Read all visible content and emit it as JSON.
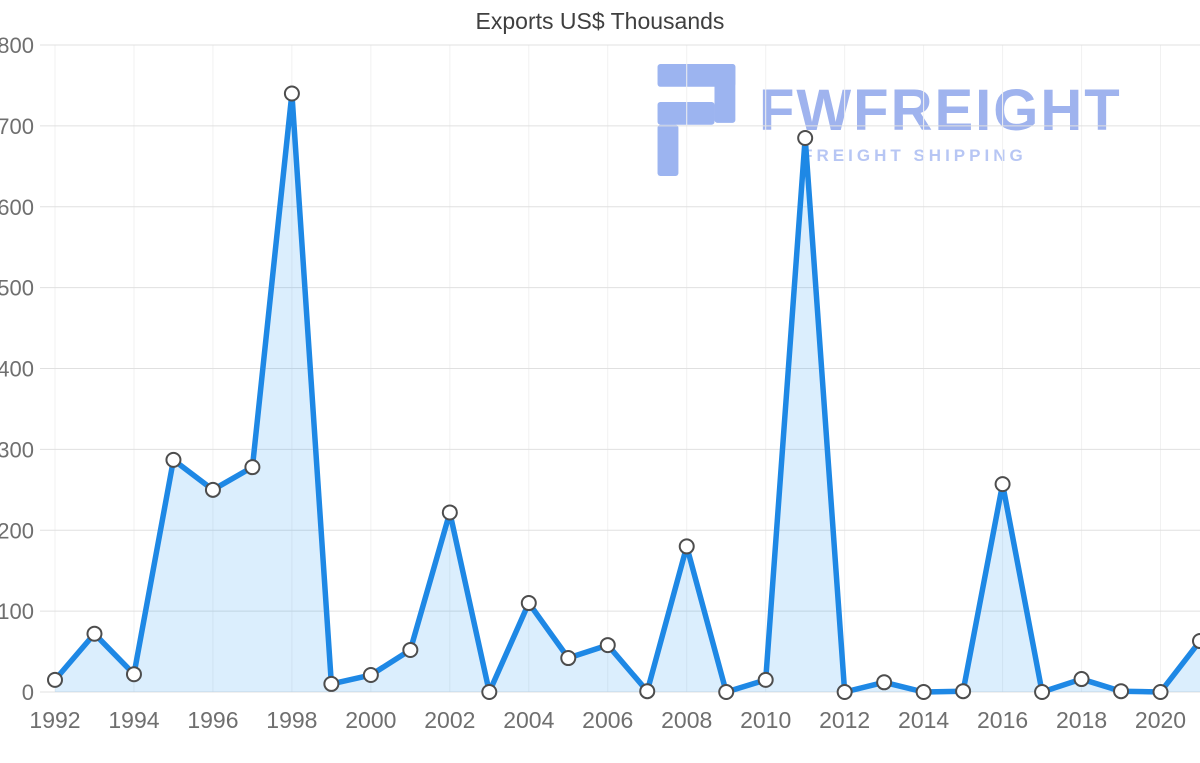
{
  "watermark": {
    "brand": "FWFREIGHT",
    "tagline": "FREIGHT SHIPPING",
    "icon": "fwfreight-logo-icon",
    "brand_color": "#9fb3ee",
    "tagline_color": "#b7c6f4",
    "icon_color": "#9cb4f0"
  },
  "chart_data": {
    "type": "area",
    "title": "Exports US$ Thousands",
    "xlabel": "",
    "ylabel": "",
    "x": [
      1992,
      1993,
      1994,
      1995,
      1996,
      1997,
      1998,
      1999,
      2000,
      2001,
      2002,
      2003,
      2004,
      2005,
      2006,
      2007,
      2008,
      2009,
      2010,
      2011,
      2012,
      2013,
      2014,
      2015,
      2016,
      2017,
      2018,
      2019,
      2020,
      2021
    ],
    "values": [
      15,
      72,
      22,
      287,
      250,
      278,
      740,
      10,
      21,
      52,
      222,
      0,
      110,
      42,
      58,
      1,
      180,
      0,
      15,
      685,
      0,
      12,
      0,
      1,
      257,
      0,
      16,
      1,
      0,
      63
    ],
    "ylim": [
      0,
      800
    ],
    "y_ticks": [
      0,
      100,
      200,
      300,
      400,
      500,
      600,
      700,
      800
    ],
    "x_tick_years": [
      1992,
      1994,
      1996,
      1998,
      2000,
      2002,
      2004,
      2006,
      2008,
      2010,
      2012,
      2014,
      2016,
      2018,
      2020
    ],
    "grid": true,
    "legend": "none",
    "colors": {
      "line": "#1e88e5",
      "fill": "rgba(33,150,243,0.16)",
      "marker_fill": "#ffffff",
      "marker_stroke": "#4d4d4d",
      "grid": "#e0e0e0",
      "vgrid": "#f1f1f1",
      "axis_text": "#6f6f6f",
      "title_text": "#3f3f3f"
    }
  }
}
